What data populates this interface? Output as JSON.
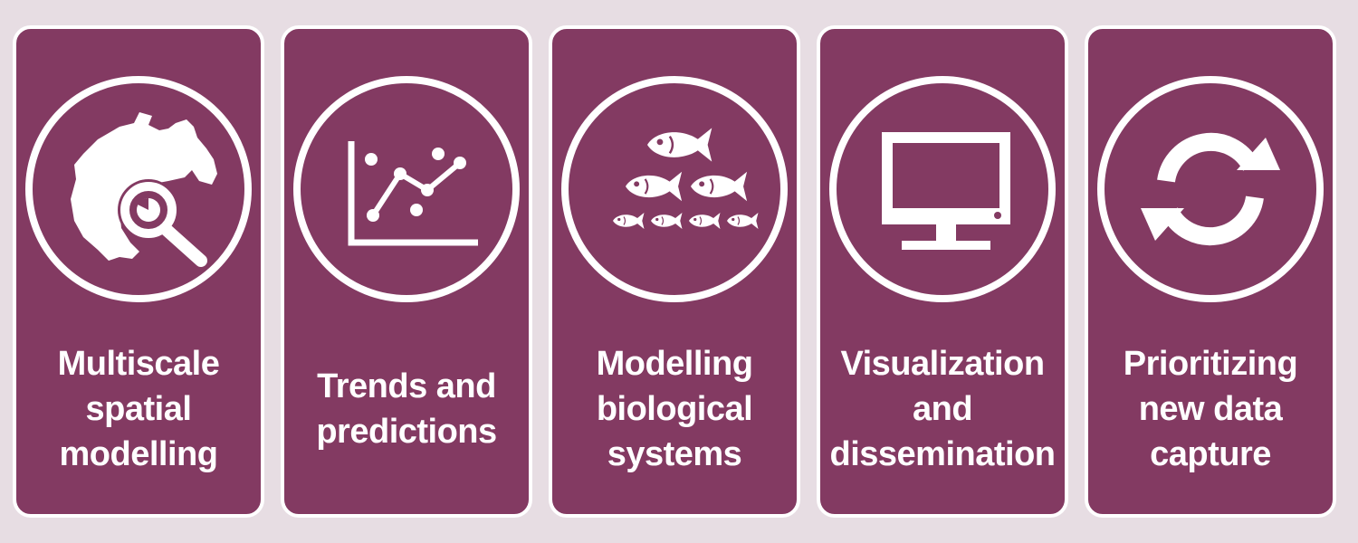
{
  "colors": {
    "page_background": "#e7dde3",
    "panel_fill": "#833a62",
    "foreground": "#ffffff"
  },
  "panels": [
    {
      "icon": "map-magnifier-icon",
      "lines": [
        "Multiscale",
        "spatial",
        "modelling"
      ]
    },
    {
      "icon": "line-chart-icon",
      "lines": [
        "Trends and",
        "predictions"
      ]
    },
    {
      "icon": "fish-school-icon",
      "lines": [
        "Modelling",
        "biological",
        "systems"
      ]
    },
    {
      "icon": "monitor-icon",
      "lines": [
        "Visualization",
        "and",
        "dissemination"
      ]
    },
    {
      "icon": "refresh-cycle-icon",
      "lines": [
        "Prioritizing",
        "new data",
        "capture"
      ]
    }
  ]
}
